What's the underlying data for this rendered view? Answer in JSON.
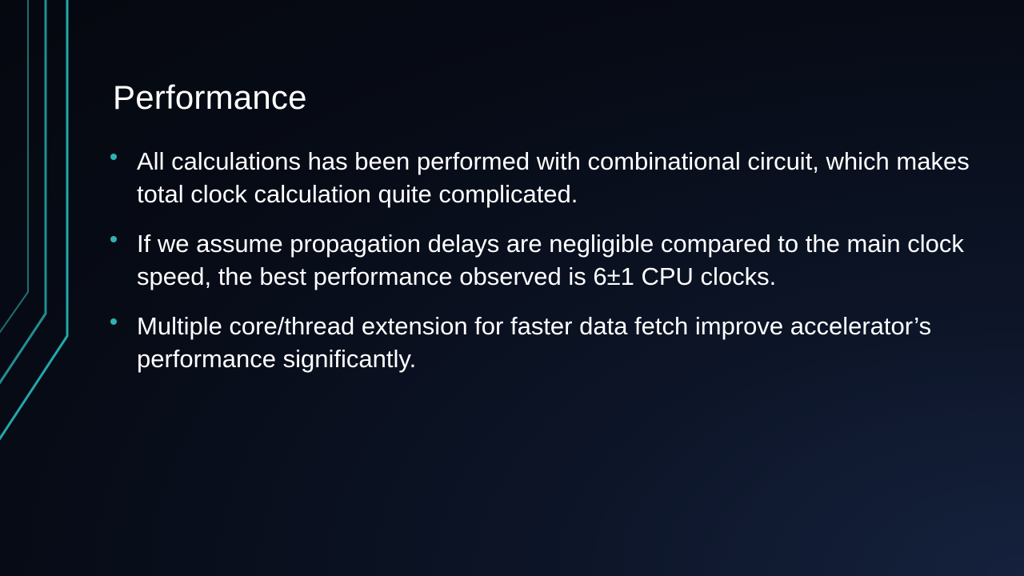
{
  "slide": {
    "title": "Performance",
    "bullets": [
      {
        "text": "All calculations has been performed with combinational circuit, which makes total clock calculation quite complicated."
      },
      {
        "text": "If we assume propagation delays are negligible compared to the main clock speed, the best performance observed is 6±1 CPU clocks."
      },
      {
        "text": "Multiple core/thread extension for faster data fetch improve accelerator’s performance significantly."
      }
    ]
  },
  "colors": {
    "accent": "#2fb2b2",
    "text": "#ffffff",
    "background": "#070b16"
  }
}
